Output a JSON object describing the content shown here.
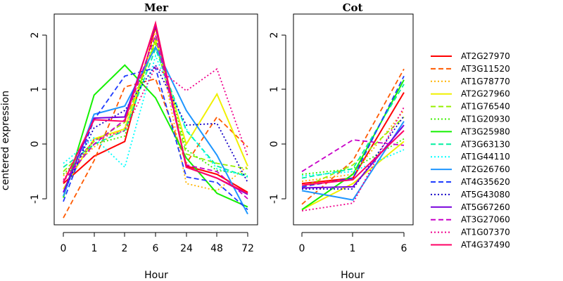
{
  "chart_data": [
    {
      "type": "line",
      "title": "Mer",
      "xlabel": "Hour",
      "ylabel": "centered expression",
      "ylim": [
        -1.5,
        2.5
      ],
      "yticks": [
        "-1",
        "0",
        "1",
        "2"
      ],
      "categories": [
        "0",
        "1",
        "2",
        "6",
        "24",
        "48",
        "72"
      ],
      "series": [
        {
          "name": "AT2G27970",
          "color": "#ff0000",
          "dash": "solid",
          "values": [
            -0.72,
            -0.22,
            0.05,
            2.15,
            -0.4,
            -0.55,
            -0.88
          ]
        },
        {
          "name": "AT3G11520",
          "color": "#ff5a00",
          "dash": "dashed",
          "values": [
            -1.35,
            -0.3,
            1.05,
            1.2,
            -0.35,
            0.5,
            -0.05
          ]
        },
        {
          "name": "AT1G78770",
          "color": "#ffb400",
          "dash": "dotted",
          "values": [
            -0.58,
            -0.05,
            0.3,
            2.08,
            -0.72,
            -0.85,
            -0.4
          ]
        },
        {
          "name": "AT2G27960",
          "color": "#f0f000",
          "dash": "solid",
          "values": [
            -0.82,
            0.1,
            0.28,
            1.92,
            0.0,
            0.92,
            -0.4
          ]
        },
        {
          "name": "AT1G76540",
          "color": "#96f000",
          "dash": "dashed",
          "values": [
            -0.5,
            0.05,
            0.4,
            1.85,
            -0.18,
            -0.35,
            -0.45
          ]
        },
        {
          "name": "AT1G20930",
          "color": "#3cf000",
          "dash": "dotted",
          "values": [
            -0.55,
            0.0,
            0.15,
            1.95,
            -0.1,
            -0.48,
            -0.55
          ]
        },
        {
          "name": "AT3G25980",
          "color": "#14f000",
          "dash": "solid",
          "values": [
            -0.98,
            0.9,
            1.45,
            0.85,
            -0.25,
            -0.9,
            -1.15
          ]
        },
        {
          "name": "AT3G63130",
          "color": "#00f0a0",
          "dash": "dashed",
          "values": [
            -0.42,
            0.0,
            0.25,
            1.75,
            0.25,
            -0.4,
            -0.6
          ]
        },
        {
          "name": "AT1G44110",
          "color": "#00ffff",
          "dash": "dotted",
          "values": [
            -0.35,
            0.12,
            -0.42,
            1.62,
            0.28,
            -0.45,
            -0.58
          ]
        },
        {
          "name": "AT2G26760",
          "color": "#1e96ff",
          "dash": "solid",
          "values": [
            -0.95,
            0.55,
            0.7,
            1.78,
            0.62,
            -0.2,
            -1.28
          ]
        },
        {
          "name": "AT4G35620",
          "color": "#1e3cff",
          "dash": "dashed",
          "values": [
            -1.05,
            0.45,
            1.25,
            1.4,
            -0.6,
            -0.7,
            -1.2
          ]
        },
        {
          "name": "AT5G43080",
          "color": "#1400c8",
          "dash": "dotted",
          "values": [
            -0.88,
            0.3,
            0.62,
            1.45,
            0.35,
            0.38,
            -0.7
          ]
        },
        {
          "name": "AT5G67260",
          "color": "#7800dc",
          "dash": "solid",
          "values": [
            -0.88,
            0.48,
            0.5,
            2.18,
            -0.42,
            -0.62,
            -0.92
          ]
        },
        {
          "name": "AT3G27060",
          "color": "#c800c8",
          "dash": "dashed",
          "values": [
            -0.68,
            0.0,
            0.45,
            2.0,
            -0.38,
            -0.5,
            -1.0
          ]
        },
        {
          "name": "AT1G07370",
          "color": "#f0008c",
          "dash": "dotted",
          "values": [
            -0.65,
            0.08,
            0.25,
            1.42,
            0.98,
            1.38,
            -0.22
          ]
        },
        {
          "name": "AT4G37490",
          "color": "#ff0064",
          "dash": "solid",
          "values": [
            -0.7,
            0.45,
            0.42,
            2.22,
            -0.42,
            -0.62,
            -0.9
          ]
        }
      ]
    },
    {
      "type": "line",
      "title": "Cot",
      "xlabel": "Hour",
      "ylim": [
        -1.5,
        2.5
      ],
      "yticks": [
        "-1",
        "0",
        "1",
        "2"
      ],
      "categories": [
        "0",
        "1",
        "6"
      ],
      "series": [
        {
          "name": "AT2G27970",
          "values": [
            -0.72,
            -0.62,
            0.95
          ]
        },
        {
          "name": "AT3G11520",
          "values": [
            -1.1,
            -0.3,
            1.38
          ]
        },
        {
          "name": "AT1G78770",
          "values": [
            -0.68,
            -0.55,
            0.62
          ]
        },
        {
          "name": "AT2G27960",
          "values": [
            -1.2,
            -0.72,
            0.05
          ]
        },
        {
          "name": "AT1G76540",
          "values": [
            -0.8,
            -0.38,
            0.5
          ]
        },
        {
          "name": "AT1G20930",
          "values": [
            -0.55,
            -0.45,
            0.1
          ]
        },
        {
          "name": "AT3G25980",
          "values": [
            -1.2,
            -0.55,
            1.18
          ]
        },
        {
          "name": "AT3G63130",
          "values": [
            -0.62,
            -0.45,
            1.1
          ]
        },
        {
          "name": "AT1G44110",
          "values": [
            -0.58,
            -0.5,
            -0.1
          ]
        },
        {
          "name": "AT2G26760",
          "values": [
            -0.85,
            -1.02,
            0.42
          ]
        },
        {
          "name": "AT4G35620",
          "values": [
            -0.78,
            -0.62,
            1.25
          ]
        },
        {
          "name": "AT5G43080",
          "values": [
            -0.82,
            -0.82,
            0.52
          ]
        },
        {
          "name": "AT5G67260",
          "values": [
            -0.8,
            -0.78,
            0.35
          ]
        },
        {
          "name": "AT3G27060",
          "values": [
            -0.5,
            0.08,
            -0.02
          ]
        },
        {
          "name": "AT1G07370",
          "values": [
            -1.22,
            -1.08,
            0.68
          ]
        },
        {
          "name": "AT4G37490",
          "values": [
            -0.75,
            -0.65,
            0.25
          ]
        }
      ]
    }
  ]
}
